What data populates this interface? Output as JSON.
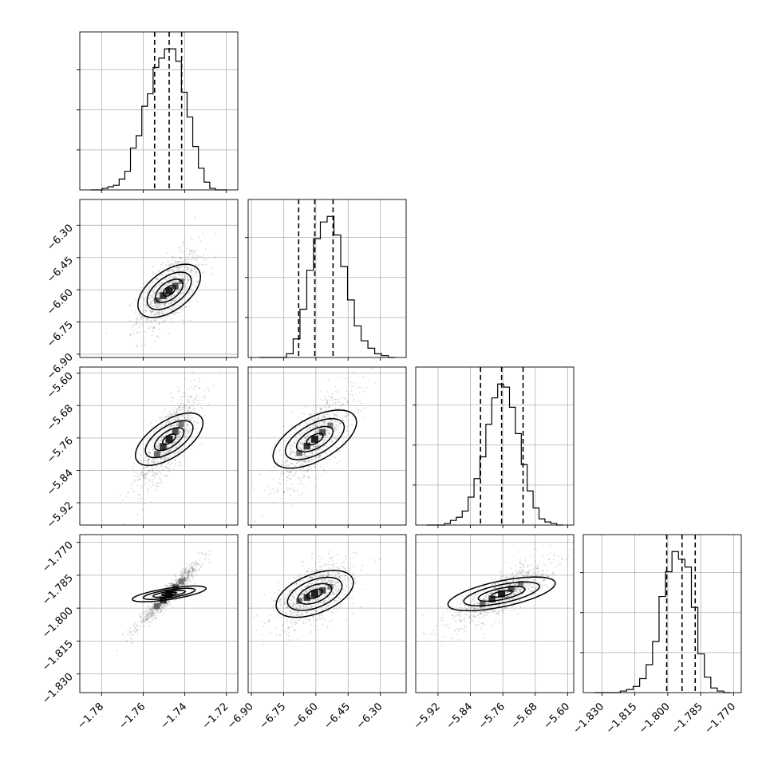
{
  "chart_data": {
    "type": "corner",
    "grid": true,
    "parameters": [
      {
        "ticks": [
          -1.78,
          -1.76,
          -1.74,
          -1.72
        ],
        "tick_labels": [
          "−1.78",
          "−1.76",
          "−1.74",
          "−1.72"
        ],
        "range": [
          -1.7905,
          -1.7145
        ],
        "quantiles": [
          -1.7545,
          -1.7475,
          -1.7415
        ],
        "histogram": [
          0,
          0,
          1,
          2,
          3,
          7,
          12,
          27,
          35,
          54,
          62,
          79,
          85,
          91,
          91,
          83,
          63,
          47,
          28,
          14,
          5,
          1,
          0,
          0
        ]
      },
      {
        "ticks": [
          -6.9,
          -6.75,
          -6.6,
          -6.45,
          -6.3
        ],
        "tick_labels": [
          "−6.90",
          "−6.75",
          "−6.60",
          "−6.45",
          "−6.30"
        ],
        "range": [
          -6.915,
          -6.18
        ],
        "quantiles": [
          -6.68,
          -6.605,
          -6.52
        ],
        "histogram": [
          0,
          0,
          0,
          0,
          2,
          10,
          26,
          47,
          64,
          73,
          76,
          66,
          49,
          31,
          17,
          9,
          5,
          2,
          1,
          0
        ]
      },
      {
        "ticks": [
          -5.92,
          -5.84,
          -5.76,
          -5.68,
          -5.6
        ],
        "tick_labels": [
          "−5.92",
          "−5.84",
          "−5.76",
          "−5.68",
          "−5.60"
        ],
        "range": [
          -5.975,
          -5.585
        ],
        "quantiles": [
          -5.815,
          -5.763,
          -5.71
        ],
        "histogram": [
          0,
          0,
          0,
          1,
          3,
          5,
          9,
          18,
          30,
          44,
          65,
          82,
          91,
          89,
          76,
          59,
          39,
          22,
          11,
          4,
          2,
          1,
          0
        ]
      },
      {
        "ticks": [
          -1.83,
          -1.815,
          -1.8,
          -1.785,
          -1.77
        ],
        "tick_labels": [
          "−1.830",
          "−1.815",
          "−1.800",
          "−1.785",
          "−1.770"
        ],
        "range": [
          -1.8385,
          -1.7665
        ],
        "quantiles": [
          -1.8005,
          -1.7935,
          -1.7875
        ],
        "histogram": [
          0,
          0,
          0,
          0,
          1,
          2,
          4,
          9,
          18,
          33,
          62,
          78,
          91,
          86,
          81,
          55,
          25,
          10,
          3,
          1,
          0
        ]
      }
    ],
    "contour_levels": [
      0.39,
      0.86,
      1.39,
      1.97
    ],
    "scatter_points_per_panel": 900
  }
}
